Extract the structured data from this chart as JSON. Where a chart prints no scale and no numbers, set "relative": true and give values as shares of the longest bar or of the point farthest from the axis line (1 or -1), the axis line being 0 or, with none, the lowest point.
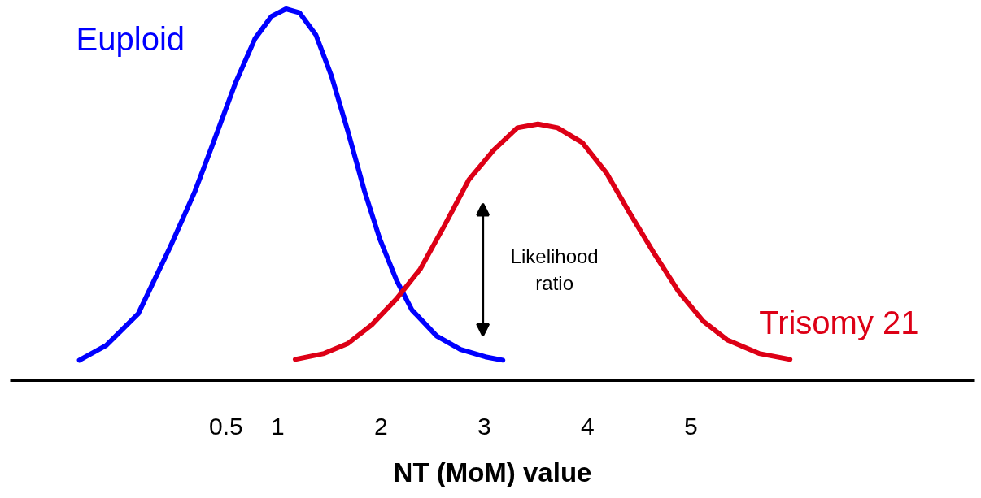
{
  "chart_data": {
    "type": "line",
    "relative": true,
    "xlabel": "NT (MoM) value",
    "xlim": [
      -1.59,
      7.75
    ],
    "xticks": [
      0.5,
      1,
      2,
      3,
      4,
      5
    ],
    "grid": false,
    "legend": false,
    "marker": "none",
    "line_style": "solid",
    "annotations": [
      "Likelihood ratio"
    ],
    "series": [
      {
        "name": "Euploid",
        "color": "#0000ff",
        "x": [
          -0.92,
          -0.66,
          -0.35,
          -0.04,
          0.2,
          0.39,
          0.59,
          0.78,
          0.94,
          1.08,
          1.21,
          1.37,
          1.52,
          1.68,
          1.84,
          1.99,
          2.15,
          2.3,
          2.54,
          2.77,
          3.01,
          3.18
        ],
        "values": [
          0.055,
          0.095,
          0.18,
          0.36,
          0.51,
          0.65,
          0.8,
          0.92,
          0.98,
          1.0,
          0.99,
          0.93,
          0.82,
          0.67,
          0.51,
          0.38,
          0.27,
          0.19,
          0.12,
          0.084,
          0.064,
          0.055
        ]
      },
      {
        "name": "Trisomy 21",
        "color": "#dd0016",
        "x": [
          1.17,
          1.45,
          1.68,
          1.91,
          2.15,
          2.38,
          2.62,
          2.85,
          3.09,
          3.32,
          3.52,
          3.71,
          3.95,
          4.18,
          4.41,
          4.65,
          4.88,
          5.12,
          5.35,
          5.66,
          5.96
        ],
        "values": [
          0.057,
          0.073,
          0.1,
          0.15,
          0.22,
          0.3,
          0.42,
          0.54,
          0.62,
          0.68,
          0.69,
          0.68,
          0.64,
          0.56,
          0.45,
          0.34,
          0.24,
          0.16,
          0.11,
          0.073,
          0.057
        ]
      }
    ]
  }
}
